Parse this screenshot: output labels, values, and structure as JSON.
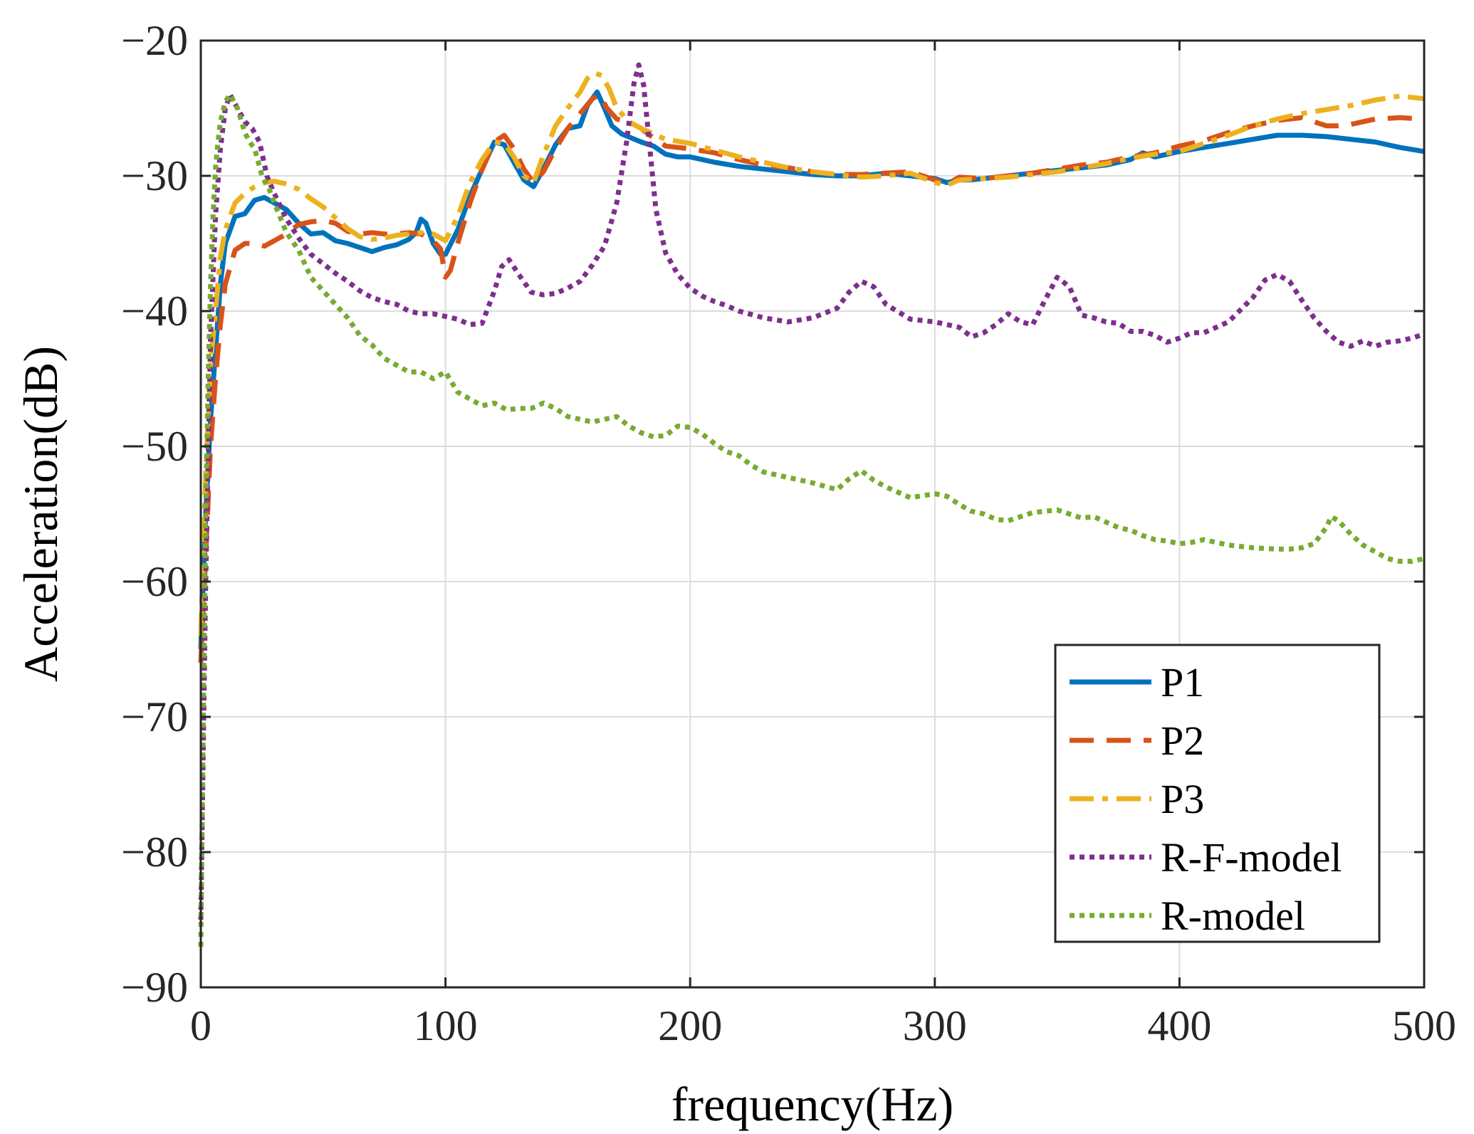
{
  "chart_data": {
    "type": "line",
    "title": "",
    "xlabel": "frequency(Hz)",
    "ylabel": "Acceleration(dB)",
    "xlim": [
      0,
      500
    ],
    "ylim": [
      -90,
      -20
    ],
    "xticks": [
      0,
      100,
      200,
      300,
      400,
      500
    ],
    "yticks": [
      -90,
      -80,
      -70,
      -60,
      -50,
      -40,
      -30,
      -20
    ],
    "xtick_labels": [
      "0",
      "100",
      "200",
      "300",
      "400",
      "500"
    ],
    "ytick_labels": [
      "−90",
      "−80",
      "−70",
      "−60",
      "−50",
      "−40",
      "−30",
      "−20"
    ],
    "grid": true,
    "legend_position": "bottom-right",
    "series": [
      {
        "name": "P1",
        "color": "#0072BD",
        "style": "solid",
        "x": [
          0,
          2,
          4,
          6,
          8,
          10,
          14,
          18,
          22,
          26,
          30,
          35,
          40,
          45,
          50,
          55,
          60,
          65,
          70,
          75,
          80,
          85,
          88,
          90,
          92,
          95,
          98,
          100,
          105,
          110,
          115,
          120,
          124,
          128,
          132,
          136,
          140,
          145,
          150,
          155,
          158,
          162,
          165,
          168,
          172,
          176,
          180,
          185,
          190,
          195,
          200,
          205,
          210,
          220,
          230,
          240,
          250,
          260,
          270,
          280,
          290,
          300,
          305,
          310,
          315,
          320,
          330,
          340,
          350,
          360,
          370,
          380,
          385,
          390,
          400,
          410,
          420,
          430,
          440,
          450,
          460,
          470,
          480,
          490,
          500
        ],
        "y": [
          -65,
          -55,
          -48,
          -43,
          -38,
          -35,
          -33,
          -32.8,
          -31.8,
          -31.6,
          -32,
          -32.5,
          -33.5,
          -34.3,
          -34.2,
          -34.8,
          -35,
          -35.3,
          -35.6,
          -35.3,
          -35.1,
          -34.7,
          -34.2,
          -33.2,
          -33.5,
          -35,
          -35.8,
          -35.8,
          -34,
          -31.5,
          -29.5,
          -27.5,
          -27.7,
          -29,
          -30.3,
          -30.8,
          -29.5,
          -27.7,
          -26.5,
          -26.3,
          -24.8,
          -23.8,
          -25,
          -26.3,
          -26.9,
          -27.2,
          -27.5,
          -27.8,
          -28.4,
          -28.6,
          -28.6,
          -28.8,
          -29,
          -29.3,
          -29.5,
          -29.7,
          -29.9,
          -30,
          -30,
          -29.8,
          -30,
          -30.2,
          -30.5,
          -30.3,
          -30.3,
          -30.2,
          -30,
          -29.8,
          -29.6,
          -29.4,
          -29.2,
          -28.8,
          -28.3,
          -28.6,
          -28.2,
          -27.9,
          -27.6,
          -27.3,
          -27,
          -27,
          -27.1,
          -27.3,
          -27.5,
          -27.9,
          -28.2
        ]
      },
      {
        "name": "P2",
        "color": "#D95319",
        "style": "dashed",
        "x": [
          0,
          2,
          4,
          6,
          8,
          10,
          14,
          18,
          22,
          26,
          30,
          35,
          40,
          45,
          50,
          55,
          60,
          65,
          70,
          75,
          80,
          85,
          90,
          95,
          98,
          100,
          102,
          105,
          110,
          115,
          120,
          124,
          128,
          132,
          136,
          140,
          145,
          150,
          155,
          160,
          163,
          166,
          170,
          175,
          180,
          185,
          190,
          200,
          210,
          220,
          230,
          240,
          250,
          260,
          270,
          280,
          290,
          300,
          305,
          310,
          320,
          330,
          340,
          350,
          360,
          370,
          380,
          390,
          400,
          410,
          420,
          430,
          440,
          450,
          455,
          460,
          465,
          470,
          480,
          490,
          500
        ],
        "y": [
          -66,
          -58,
          -50,
          -45,
          -41,
          -38,
          -35.5,
          -35,
          -35,
          -35.2,
          -34.8,
          -34.3,
          -33.6,
          -33.4,
          -33.3,
          -33.5,
          -34.1,
          -34.3,
          -34.2,
          -34.3,
          -34.3,
          -34.2,
          -34.3,
          -34.8,
          -35.4,
          -37.5,
          -37,
          -35,
          -32,
          -29.5,
          -27.5,
          -27,
          -28,
          -29.5,
          -30.5,
          -29.7,
          -28,
          -26.5,
          -25.4,
          -24.3,
          -24,
          -25,
          -25.8,
          -26,
          -26.5,
          -27.2,
          -27.8,
          -28,
          -28.3,
          -28.8,
          -29.2,
          -29.4,
          -29.7,
          -29.9,
          -29.9,
          -29.8,
          -29.7,
          -30.3,
          -30.6,
          -30.1,
          -30.2,
          -30,
          -29.8,
          -29.5,
          -29.2,
          -29,
          -28.6,
          -28.3,
          -27.8,
          -27.4,
          -26.8,
          -26.3,
          -25.9,
          -25.7,
          -26,
          -26.3,
          -26.3,
          -26.2,
          -25.8,
          -25.7,
          -25.8
        ]
      },
      {
        "name": "P3",
        "color": "#EDB120",
        "style": "dashdot",
        "x": [
          0,
          2,
          4,
          6,
          8,
          10,
          14,
          18,
          22,
          26,
          30,
          35,
          40,
          45,
          50,
          55,
          60,
          65,
          70,
          75,
          80,
          85,
          90,
          95,
          100,
          105,
          110,
          115,
          120,
          124,
          128,
          132,
          136,
          140,
          145,
          150,
          155,
          158,
          161,
          164,
          167,
          170,
          175,
          180,
          185,
          190,
          200,
          210,
          220,
          230,
          240,
          250,
          260,
          270,
          280,
          290,
          300,
          305,
          310,
          320,
          330,
          340,
          350,
          360,
          370,
          380,
          390,
          400,
          410,
          420,
          430,
          440,
          450,
          460,
          470,
          480,
          490,
          500
        ],
        "y": [
          -64,
          -52,
          -44,
          -40,
          -36,
          -34,
          -32,
          -31.3,
          -30.8,
          -30.5,
          -30.4,
          -30.6,
          -31,
          -31.7,
          -32.3,
          -33.1,
          -33.9,
          -34.5,
          -34.7,
          -34.6,
          -34.4,
          -34.3,
          -34.2,
          -34.3,
          -34.8,
          -33,
          -30.5,
          -28.8,
          -27.5,
          -27.6,
          -28.6,
          -30,
          -30.5,
          -28.5,
          -26.3,
          -25,
          -23.8,
          -22.8,
          -22.4,
          -22.6,
          -23.6,
          -25,
          -26,
          -26.5,
          -26.9,
          -27.3,
          -27.6,
          -28.1,
          -28.6,
          -29,
          -29.4,
          -29.7,
          -29.9,
          -30.1,
          -30,
          -29.8,
          -30.5,
          -30.7,
          -30.3,
          -30.2,
          -30.1,
          -29.9,
          -29.7,
          -29.4,
          -29.1,
          -28.7,
          -28.4,
          -28.2,
          -27.6,
          -27,
          -26.3,
          -25.8,
          -25.4,
          -25.1,
          -24.8,
          -24.4,
          -24.1,
          -24.3
        ]
      },
      {
        "name": "R-F-model",
        "color": "#7E2F8E",
        "style": "dotted",
        "x": [
          0,
          2,
          4,
          6,
          8,
          10,
          12,
          15,
          18,
          21,
          24,
          27,
          30,
          35,
          40,
          45,
          50,
          55,
          60,
          65,
          70,
          75,
          80,
          85,
          90,
          95,
          100,
          105,
          110,
          115,
          120,
          123,
          126,
          130,
          135,
          140,
          145,
          150,
          155,
          160,
          165,
          170,
          174,
          177,
          179,
          181,
          183,
          186,
          190,
          195,
          200,
          205,
          210,
          215,
          220,
          230,
          240,
          250,
          260,
          265,
          270,
          275,
          280,
          290,
          300,
          310,
          315,
          320,
          325,
          330,
          335,
          340,
          345,
          350,
          355,
          360,
          365,
          370,
          375,
          380,
          385,
          390,
          395,
          400,
          405,
          410,
          420,
          430,
          435,
          440,
          445,
          450,
          455,
          460,
          465,
          470,
          475,
          480,
          485,
          490,
          495,
          500
        ],
        "y": [
          -85,
          -60,
          -42,
          -33,
          -28,
          -25,
          -24,
          -25,
          -26,
          -26.5,
          -27.5,
          -30,
          -31.3,
          -33.2,
          -34.6,
          -35.8,
          -36.5,
          -37.2,
          -37.8,
          -38.5,
          -39,
          -39.3,
          -39.5,
          -40,
          -40.2,
          -40.2,
          -40.4,
          -40.6,
          -41,
          -40.9,
          -38.5,
          -36.7,
          -36.2,
          -37.3,
          -38.6,
          -38.8,
          -38.7,
          -38.3,
          -37.8,
          -36.6,
          -35.2,
          -32,
          -27.5,
          -23.2,
          -21.8,
          -23.3,
          -27,
          -32.5,
          -35.7,
          -37.3,
          -38.3,
          -38.9,
          -39.3,
          -39.6,
          -40,
          -40.5,
          -40.8,
          -40.5,
          -39.8,
          -38.6,
          -37.8,
          -38.2,
          -39.5,
          -40.6,
          -40.8,
          -41.2,
          -41.9,
          -41.6,
          -41,
          -40.2,
          -40.8,
          -41,
          -39.2,
          -37.5,
          -38.2,
          -40.3,
          -40.5,
          -40.8,
          -40.9,
          -41.5,
          -41.5,
          -41.8,
          -42.3,
          -42,
          -41.6,
          -41.6,
          -40.8,
          -39,
          -37.7,
          -37.3,
          -37.8,
          -39.2,
          -40.5,
          -41.5,
          -42.3,
          -42.6,
          -42.2,
          -42.6,
          -42.3,
          -42.2,
          -42,
          -41.7
        ]
      },
      {
        "name": "R-model",
        "color": "#77AC30",
        "style": "dotted",
        "x": [
          0,
          1,
          2,
          3,
          4,
          5,
          6,
          7,
          8,
          10,
          12,
          15,
          18,
          20,
          22,
          25,
          28,
          30,
          35,
          40,
          45,
          50,
          55,
          60,
          65,
          70,
          75,
          80,
          85,
          90,
          95,
          100,
          105,
          110,
          115,
          120,
          125,
          130,
          135,
          140,
          145,
          150,
          155,
          160,
          165,
          170,
          175,
          180,
          185,
          190,
          195,
          200,
          205,
          210,
          215,
          220,
          225,
          230,
          240,
          250,
          260,
          265,
          270,
          275,
          280,
          290,
          300,
          305,
          310,
          315,
          320,
          325,
          330,
          335,
          340,
          345,
          350,
          355,
          360,
          365,
          370,
          375,
          380,
          385,
          390,
          395,
          400,
          405,
          410,
          420,
          430,
          440,
          445,
          450,
          455,
          460,
          462,
          465,
          470,
          475,
          480,
          485,
          490,
          495,
          500
        ],
        "y": [
          -87,
          -70,
          -55,
          -45,
          -38,
          -33,
          -29.5,
          -27.5,
          -26,
          -24.5,
          -24,
          -25,
          -26.8,
          -27.5,
          -28,
          -30,
          -31,
          -32,
          -34.2,
          -35.5,
          -37.5,
          -38.5,
          -39.5,
          -40.5,
          -41.8,
          -42.5,
          -43.5,
          -44,
          -44.5,
          -44.5,
          -45,
          -44.5,
          -46,
          -46.5,
          -47,
          -46.8,
          -47.3,
          -47.2,
          -47.2,
          -46.8,
          -47.2,
          -47.8,
          -48,
          -48.2,
          -48,
          -47.8,
          -48.5,
          -49,
          -49.3,
          -49.2,
          -48.5,
          -48.6,
          -49.1,
          -49.8,
          -50.4,
          -50.7,
          -51.4,
          -51.9,
          -52.3,
          -52.7,
          -53.2,
          -52.4,
          -51.8,
          -52.5,
          -53,
          -53.8,
          -53.5,
          -53.7,
          -54.3,
          -54.8,
          -55,
          -55.4,
          -55.5,
          -55.2,
          -54.9,
          -54.8,
          -54.7,
          -55,
          -55.3,
          -55.2,
          -55.6,
          -56,
          -56.2,
          -56.6,
          -56.9,
          -57,
          -57.2,
          -57.1,
          -56.9,
          -57.3,
          -57.5,
          -57.6,
          -57.6,
          -57.5,
          -57.2,
          -56,
          -55.2,
          -55.5,
          -56.5,
          -57.3,
          -57.8,
          -58.3,
          -58.5,
          -58.5,
          -58.3
        ]
      }
    ]
  }
}
